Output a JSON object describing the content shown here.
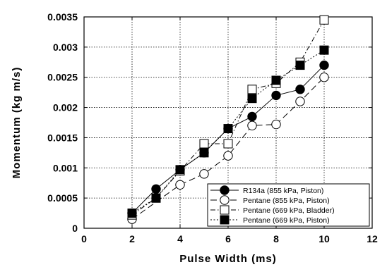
{
  "chart_data": {
    "type": "line",
    "xlabel": "Pulse Width (ms)",
    "ylabel": "Momentum (kg m/s)",
    "xlim": [
      0,
      12
    ],
    "ylim": [
      0,
      0.0035
    ],
    "x_ticks": [
      0,
      2,
      4,
      6,
      8,
      10,
      12
    ],
    "y_ticks": [
      0,
      0.0005,
      0.001,
      0.0015,
      0.002,
      0.0025,
      0.003,
      0.0035
    ],
    "x_tick_labels": [
      "0",
      "2",
      "4",
      "6",
      "8",
      "10",
      "12"
    ],
    "y_tick_labels": [
      "0",
      "0.0005",
      "0.001",
      "0.0015",
      "0.002",
      "0.0025",
      "0.003",
      "0.0035"
    ],
    "grid": true,
    "legend_position": "bottom-right",
    "series": [
      {
        "name": "R134a (855 kPa, Piston)",
        "marker": "filled-circle",
        "line": "solid",
        "x": [
          2,
          3,
          4,
          5,
          6,
          7,
          8,
          9,
          10
        ],
        "y": [
          0.00025,
          0.00065,
          0.00097,
          0.00125,
          0.00165,
          0.00185,
          0.0022,
          0.0023,
          0.0027
        ]
      },
      {
        "name": "Pentane (855 kPa, Piston)",
        "marker": "open-circle",
        "line": "long-dash",
        "x": [
          2,
          4,
          5,
          6,
          7,
          8,
          9,
          10
        ],
        "y": [
          0.00015,
          0.00072,
          0.0009,
          0.0012,
          0.0017,
          0.00172,
          0.0021,
          0.0025
        ]
      },
      {
        "name": "Pentane (669 kPa, Bladder)",
        "marker": "open-square",
        "line": "dash-dot",
        "x": [
          2,
          3,
          4,
          5,
          6,
          7,
          8,
          9,
          10
        ],
        "y": [
          0.00022,
          0.0005,
          0.00095,
          0.0014,
          0.0014,
          0.0023,
          0.0024,
          0.00275,
          0.00345
        ]
      },
      {
        "name": "Pentane (669 kPa, Piston)",
        "marker": "filled-square",
        "line": "dotted",
        "x": [
          2,
          3,
          4,
          5,
          6,
          7,
          8,
          9,
          10
        ],
        "y": [
          0.00025,
          0.0005,
          0.00097,
          0.00125,
          0.00165,
          0.00215,
          0.00245,
          0.0027,
          0.00295
        ]
      }
    ]
  }
}
